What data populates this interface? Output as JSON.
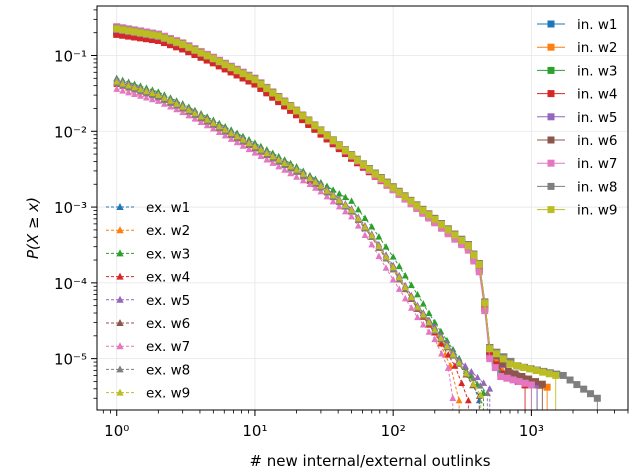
{
  "chart_data": {
    "type": "line",
    "title": "",
    "xlabel": "# new internal/external outlinks",
    "ylabel": "P(X ≥ x)",
    "x_scale": "log",
    "y_scale": "log",
    "xlim": [
      0.72,
      5000
    ],
    "ylim": [
      2.1e-06,
      0.45
    ],
    "x_ticks": [
      {
        "value": 1,
        "label": "10⁰"
      },
      {
        "value": 10,
        "label": "10¹"
      },
      {
        "value": 100,
        "label": "10²"
      },
      {
        "value": 1000,
        "label": "10³"
      }
    ],
    "y_ticks": [
      {
        "value": 0.1,
        "label": "10⁻¹"
      },
      {
        "value": 0.01,
        "label": "10⁻²"
      },
      {
        "value": 0.001,
        "label": "10⁻³"
      },
      {
        "value": 0.0001,
        "label": "10⁻⁴"
      },
      {
        "value": 1e-05,
        "label": "10⁻⁵"
      }
    ],
    "grid": true,
    "legends": [
      {
        "placement": "top-right",
        "group": "internal"
      },
      {
        "placement": "bottom-left",
        "group": "external"
      }
    ],
    "series": [
      {
        "name": "in. w1",
        "group": "internal",
        "marker": "square",
        "color": "#1f77b4",
        "x": [
          1,
          2,
          3,
          5,
          10,
          20,
          50,
          100,
          200,
          350,
          420,
          460,
          500,
          600,
          1100
        ],
        "y": [
          0.21,
          0.17,
          0.13,
          0.085,
          0.045,
          0.017,
          0.0045,
          0.0017,
          0.00065,
          0.0003,
          0.00016,
          5e-05,
          1.2e-05,
          6.5e-06,
          4.5e-06
        ]
      },
      {
        "name": "in. w2",
        "group": "internal",
        "marker": "square",
        "color": "#ff7f0e",
        "x": [
          1,
          2,
          3,
          5,
          10,
          20,
          50,
          100,
          200,
          350,
          420,
          460,
          500,
          650,
          1300
        ],
        "y": [
          0.22,
          0.175,
          0.135,
          0.088,
          0.047,
          0.018,
          0.0047,
          0.0018,
          0.00068,
          0.00031,
          0.00017,
          5.2e-05,
          1.3e-05,
          6e-06,
          4.2e-06
        ]
      },
      {
        "name": "in. w3",
        "group": "internal",
        "marker": "square",
        "color": "#2ca02c",
        "x": [
          1,
          2,
          3,
          5,
          10,
          20,
          50,
          100,
          200,
          350,
          420,
          460,
          500,
          620,
          1000
        ],
        "y": [
          0.2,
          0.165,
          0.128,
          0.083,
          0.044,
          0.0175,
          0.0046,
          0.00175,
          0.00066,
          0.00029,
          0.000155,
          4.8e-05,
          1.1e-05,
          6e-06,
          4.5e-06
        ]
      },
      {
        "name": "in. w4",
        "group": "internal",
        "marker": "square",
        "color": "#d62728",
        "x": [
          1,
          2,
          3,
          5,
          10,
          20,
          50,
          100,
          200,
          350,
          420,
          460,
          500,
          640,
          900
        ],
        "y": [
          0.19,
          0.158,
          0.122,
          0.08,
          0.042,
          0.0165,
          0.0044,
          0.0017,
          0.00064,
          0.00029,
          0.00015,
          4.6e-05,
          1.1e-05,
          6.2e-06,
          4.5e-06
        ]
      },
      {
        "name": "in. w5",
        "group": "internal",
        "marker": "square",
        "color": "#9467bd",
        "x": [
          1,
          2,
          3,
          5,
          10,
          20,
          50,
          100,
          200,
          350,
          420,
          460,
          500,
          700,
          1100
        ],
        "y": [
          0.22,
          0.178,
          0.138,
          0.09,
          0.048,
          0.0185,
          0.0048,
          0.0018,
          0.0007,
          0.00032,
          0.000175,
          5.5e-05,
          1.4e-05,
          6.5e-06,
          4.5e-06
        ]
      },
      {
        "name": "in. w6",
        "group": "internal",
        "marker": "square",
        "color": "#8c564b",
        "x": [
          1,
          2,
          3,
          5,
          10,
          20,
          50,
          100,
          200,
          350,
          420,
          460,
          500,
          680,
          1200
        ],
        "y": [
          0.235,
          0.19,
          0.145,
          0.094,
          0.05,
          0.019,
          0.0049,
          0.00185,
          0.00071,
          0.00032,
          0.00018,
          5.6e-05,
          1.4e-05,
          6.8e-06,
          4.6e-06
        ]
      },
      {
        "name": "in. w7",
        "group": "internal",
        "marker": "square",
        "color": "#e377c2",
        "x": [
          1,
          2,
          3,
          5,
          10,
          20,
          50,
          100,
          200,
          350,
          420,
          460,
          500,
          600,
          1000
        ],
        "y": [
          0.24,
          0.192,
          0.147,
          0.095,
          0.05,
          0.0188,
          0.0047,
          0.0017,
          0.00062,
          0.00027,
          0.00014,
          4.3e-05,
          1e-05,
          5.8e-06,
          4.5e-06
        ]
      },
      {
        "name": "in. w8",
        "group": "internal",
        "marker": "square",
        "color": "#7f7f7f",
        "x": [
          1,
          2,
          3,
          5,
          10,
          20,
          50,
          100,
          200,
          350,
          420,
          460,
          500,
          800,
          1700,
          3000
        ],
        "y": [
          0.23,
          0.185,
          0.142,
          0.092,
          0.049,
          0.0187,
          0.0049,
          0.00185,
          0.0007,
          0.00032,
          0.00018,
          5.6e-05,
          1.4e-05,
          8e-06,
          6e-06,
          3e-06
        ]
      },
      {
        "name": "in. w9",
        "group": "internal",
        "marker": "square",
        "color": "#bcbd22",
        "x": [
          1,
          2,
          3,
          5,
          10,
          20,
          50,
          100,
          200,
          350,
          420,
          460,
          500,
          700,
          1500
        ],
        "y": [
          0.225,
          0.182,
          0.14,
          0.091,
          0.048,
          0.0186,
          0.0048,
          0.0018,
          0.00069,
          0.00031,
          0.000175,
          5.4e-05,
          1.35e-05,
          8.5e-06,
          6e-06
        ]
      },
      {
        "name": "ex. w1",
        "group": "external",
        "marker": "triangle",
        "color": "#1f77b4",
        "x": [
          1,
          2,
          3,
          5,
          10,
          20,
          25,
          30,
          50,
          70,
          100,
          150,
          200,
          300,
          380,
          420
        ],
        "y": [
          0.046,
          0.03,
          0.021,
          0.013,
          0.0063,
          0.0031,
          0.0024,
          0.0019,
          0.00092,
          0.00042,
          0.00016,
          5e-05,
          2.5e-05,
          9e-06,
          4.5e-06,
          2.8e-06
        ]
      },
      {
        "name": "ex. w2",
        "group": "external",
        "marker": "triangle",
        "color": "#ff7f0e",
        "x": [
          1,
          2,
          3,
          5,
          10,
          20,
          25,
          30,
          50,
          70,
          100,
          150,
          200,
          260,
          300
        ],
        "y": [
          0.045,
          0.029,
          0.0205,
          0.0125,
          0.0062,
          0.003,
          0.0023,
          0.0018,
          0.0009,
          0.0004,
          0.00015,
          4.5e-05,
          2.2e-05,
          8e-06,
          2.8e-06
        ]
      },
      {
        "name": "ex. w3",
        "group": "external",
        "marker": "triangle",
        "color": "#2ca02c",
        "x": [
          1,
          2,
          3,
          5,
          10,
          20,
          25,
          30,
          50,
          70,
          100,
          150,
          200,
          300,
          450
        ],
        "y": [
          0.05,
          0.033,
          0.023,
          0.014,
          0.007,
          0.0034,
          0.0026,
          0.0021,
          0.0012,
          0.00055,
          0.00022,
          7e-05,
          3e-05,
          1e-05,
          3.5e-06
        ]
      },
      {
        "name": "ex. w4",
        "group": "external",
        "marker": "triangle",
        "color": "#d62728",
        "x": [
          1,
          2,
          3,
          5,
          10,
          20,
          25,
          30,
          50,
          70,
          100,
          150,
          200,
          280,
          350
        ],
        "y": [
          0.042,
          0.028,
          0.0198,
          0.012,
          0.0059,
          0.0029,
          0.0022,
          0.0018,
          0.00088,
          0.0004,
          0.00015,
          4.5e-05,
          2.2e-05,
          8e-06,
          2.8e-06
        ]
      },
      {
        "name": "ex. w5",
        "group": "external",
        "marker": "triangle",
        "color": "#9467bd",
        "x": [
          1,
          2,
          3,
          5,
          10,
          20,
          25,
          30,
          50,
          70,
          100,
          150,
          200,
          300,
          500
        ],
        "y": [
          0.048,
          0.031,
          0.022,
          0.0133,
          0.0066,
          0.0032,
          0.0025,
          0.002,
          0.00095,
          0.00044,
          0.00017,
          5e-05,
          2.6e-05,
          9.5e-06,
          4e-06
        ]
      },
      {
        "name": "ex. w6",
        "group": "external",
        "marker": "triangle",
        "color": "#8c564b",
        "x": [
          1,
          2,
          3,
          5,
          10,
          20,
          25,
          30,
          50,
          70,
          100,
          150,
          200,
          300,
          420
        ],
        "y": [
          0.044,
          0.029,
          0.0205,
          0.0125,
          0.0061,
          0.003,
          0.0024,
          0.0019,
          0.0009,
          0.00042,
          0.00016,
          4.8e-05,
          2.4e-05,
          8.5e-06,
          3.2e-06
        ]
      },
      {
        "name": "ex. w7",
        "group": "external",
        "marker": "triangle",
        "color": "#e377c2",
        "x": [
          1,
          2,
          3,
          5,
          10,
          20,
          25,
          30,
          50,
          70,
          100,
          150,
          200,
          250,
          270
        ],
        "y": [
          0.036,
          0.025,
          0.0178,
          0.0108,
          0.0052,
          0.0025,
          0.002,
          0.0016,
          0.00075,
          0.00032,
          0.00011,
          3.5e-05,
          1.8e-05,
          7.5e-06,
          3e-06
        ]
      },
      {
        "name": "ex. w8",
        "group": "external",
        "marker": "triangle",
        "color": "#7f7f7f",
        "x": [
          1,
          2,
          3,
          5,
          10,
          20,
          25,
          30,
          50,
          70,
          100,
          150,
          200,
          300,
          480
        ],
        "y": [
          0.043,
          0.028,
          0.02,
          0.0122,
          0.006,
          0.0029,
          0.0023,
          0.0018,
          0.00087,
          0.0004,
          0.00015,
          4.6e-05,
          2.3e-05,
          8.5e-06,
          3.5e-06
        ]
      },
      {
        "name": "ex. w9",
        "group": "external",
        "marker": "triangle",
        "color": "#bcbd22",
        "x": [
          1,
          2,
          3,
          5,
          10,
          20,
          25,
          30,
          50,
          70,
          100,
          150,
          200,
          300,
          430
        ],
        "y": [
          0.045,
          0.03,
          0.021,
          0.0128,
          0.0063,
          0.0031,
          0.0024,
          0.0019,
          0.00091,
          0.00042,
          0.00016,
          4.8e-05,
          2.4e-05,
          8.8e-06,
          3.3e-06
        ]
      }
    ]
  }
}
